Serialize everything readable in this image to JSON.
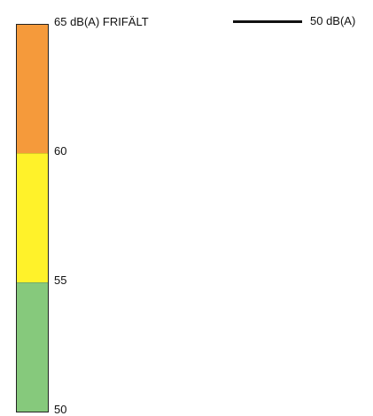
{
  "legend": {
    "top_label": "65 dB(A) FRIFÄLT",
    "tick_labels": [
      "60",
      "55",
      "50"
    ],
    "bands": [
      {
        "from": 65,
        "to": 60,
        "color": "#f59a3b"
      },
      {
        "from": 60,
        "to": 55,
        "color": "#fff22a"
      },
      {
        "from": 55,
        "to": 50,
        "color": "#86c97c"
      }
    ],
    "line_label": "50 dB(A)",
    "line_color": "#111111"
  }
}
